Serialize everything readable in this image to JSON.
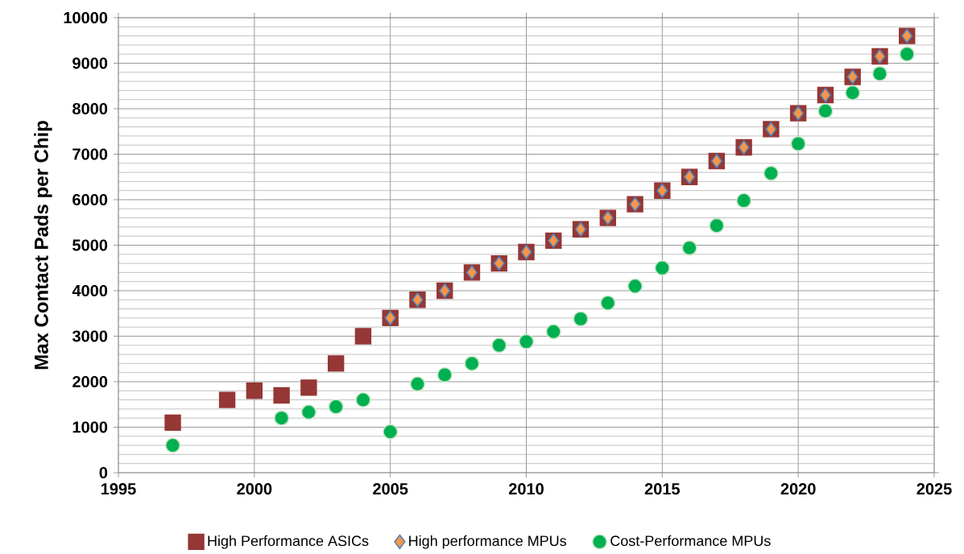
{
  "chart_data": {
    "type": "scatter",
    "ylabel": "Max Contact Pads per Chip",
    "x": [
      1997,
      1998,
      1999,
      2000,
      2001,
      2002,
      2003,
      2004,
      2005,
      2006,
      2007,
      2008,
      2009,
      2010,
      2011,
      2012,
      2013,
      2014,
      2015,
      2016,
      2017,
      2018,
      2019,
      2020,
      2021,
      2022,
      2023,
      2024
    ],
    "series": [
      {
        "name": "High Performance ASICs",
        "color": "#953735",
        "marker": "square",
        "values": [
          1100,
          null,
          1600,
          1800,
          1700,
          1870,
          2400,
          3000,
          3400,
          3800,
          4000,
          4400,
          4600,
          4850,
          5100,
          5350,
          5600,
          5900,
          6200,
          6500,
          6850,
          7150,
          7550,
          7900,
          8300,
          8700,
          9150,
          9600
        ]
      },
      {
        "name": "High performance MPUs",
        "color": "#f79646",
        "marker": "diamond",
        "values": [
          null,
          null,
          null,
          null,
          null,
          null,
          null,
          null,
          3400,
          3800,
          4000,
          4400,
          4600,
          4850,
          5100,
          5350,
          5600,
          5900,
          6200,
          6500,
          6850,
          7150,
          7550,
          7900,
          8300,
          8700,
          9150,
          9600
        ]
      },
      {
        "name": "Cost-Performance MPUs",
        "color": "#00b050",
        "marker": "circle",
        "values": [
          600,
          null,
          null,
          null,
          1200,
          1330,
          1450,
          1600,
          900,
          1950,
          2150,
          2400,
          2800,
          2880,
          3100,
          3380,
          3730,
          4100,
          4500,
          4940,
          5430,
          5980,
          6580,
          7230,
          7950,
          8350,
          8770,
          9200
        ]
      }
    ],
    "xlim": [
      1995,
      2025
    ],
    "xticks": [
      1995,
      2000,
      2005,
      2010,
      2015,
      2020,
      2025
    ],
    "ylim": [
      0,
      10000
    ],
    "yticks": [
      0,
      1000,
      2000,
      3000,
      4000,
      5000,
      6000,
      7000,
      8000,
      9000,
      10000
    ],
    "grid": true,
    "legend": "bottom"
  }
}
